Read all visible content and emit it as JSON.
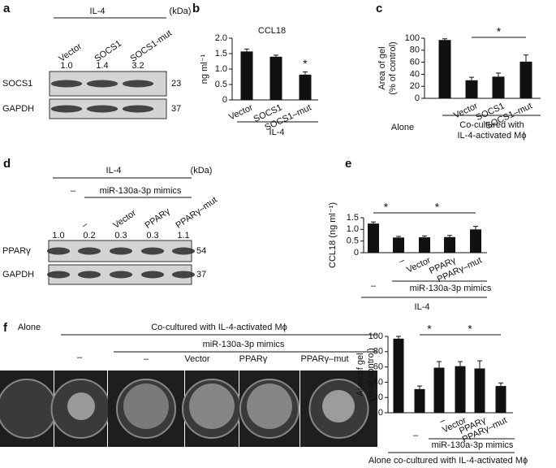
{
  "chart_data": [
    {
      "type": "bar",
      "panel": "b",
      "title": "CCL18",
      "ylabel": [
        "ng ml⁻¹"
      ],
      "categories": [
        "Vector",
        "SOCS1",
        "SOCS1–mut"
      ],
      "values": [
        1.57,
        1.4,
        0.82
      ],
      "errors": [
        0.08,
        0.05,
        0.09
      ],
      "color": "#111111",
      "ylim": [
        0,
        2
      ],
      "yticks": [
        0,
        0.5,
        {
          "value": 1,
          "label": "1.0"
        },
        1.5,
        {
          "value": 2,
          "label": "2.0"
        }
      ],
      "stars": [
        "*"
      ],
      "row_labels": [],
      "group_label": [
        "IL-4"
      ]
    },
    {
      "type": "bar",
      "panel": "c",
      "ylabel": [
        "Area of gel",
        "(% of control)"
      ],
      "categories": [
        null,
        "Vector",
        "SOCS1",
        "SOCS1–mut"
      ],
      "values": [
        97,
        30,
        36,
        61
      ],
      "errors": [
        2,
        5,
        6,
        11
      ],
      "color": "#111111",
      "ylim": [
        0,
        100
      ],
      "yticks": [
        0,
        20,
        40,
        60,
        80,
        100
      ],
      "stars": [
        "*"
      ],
      "row_labels": [
        "Alone"
      ],
      "group_label": [
        "Co-cultured with",
        "IL-4-activated Mϕ"
      ]
    },
    {
      "type": "bar",
      "panel": "e",
      "ylabel": [
        "CCL18 (ng ml⁻¹)"
      ],
      "categories": [
        null,
        "–",
        "Vector",
        "PPARγ",
        "PPARγ–mut"
      ],
      "values": [
        1.25,
        0.65,
        0.66,
        0.67,
        1.0
      ],
      "errors": [
        0.07,
        0.05,
        0.06,
        0.07,
        0.13
      ],
      "color": "#111111",
      "ylim": [
        0,
        1.5
      ],
      "yticks": [
        0,
        0.5,
        {
          "value": 1,
          "label": "1.0"
        },
        1.5
      ],
      "stars": [
        "*",
        "*"
      ],
      "row_labels": [
        "–",
        "miR-130a-3p mimics"
      ],
      "group_label": [
        "IL-4"
      ]
    },
    {
      "type": "bar",
      "ylabel": [
        "Area of gel",
        "(% of control)"
      ],
      "categories": [
        null,
        null,
        "–",
        "Vector",
        "PPARγ",
        "PPARγ–mut"
      ],
      "values": [
        97,
        31,
        59,
        61,
        58,
        35
      ],
      "errors": [
        3,
        4,
        8,
        6,
        10,
        4
      ],
      "color": "#111111",
      "ylim": [
        0,
        100
      ],
      "yticks": [
        0,
        20,
        40,
        60,
        80,
        100
      ],
      "stars": [
        "*",
        "*"
      ],
      "row_labels": [
        "–",
        "miR-130a-3p mimics"
      ],
      "group_label": [
        "Alone co-cultured with IL-4-activated Mϕ"
      ]
    }
  ],
  "blots": [
    {
      "panel": "a",
      "header": "IL-4",
      "kda_header": "(kDa)",
      "treatment_rows": [],
      "lanes": [
        "Vector",
        "SOCS1",
        "SOCS1-mut"
      ],
      "quantities": [
        "1.0",
        "1.4",
        "3.2"
      ],
      "rows": [
        {
          "name": "SOCS1",
          "kda": 23
        },
        {
          "name": "GAPDH",
          "kda": 37
        }
      ]
    },
    {
      "panel": "d",
      "header": "IL-4",
      "kda_header": "(kDa)",
      "treatment_rows": [
        "–",
        "miR-130a-3p mimics"
      ],
      "lanes": [
        null,
        "–",
        "Vector",
        "PPARγ",
        "PPARγ–mut"
      ],
      "quantities": [
        "1.0",
        "0.2",
        "0.3",
        "0.3",
        "1.1"
      ],
      "rows": [
        {
          "name": "PPARγ",
          "kda": 54
        },
        {
          "name": "GAPDH",
          "kda": 37
        }
      ]
    }
  ],
  "wells": {
    "panel": "f",
    "alone": "Alone",
    "header": "Co-cultured with IL-4-activated Mϕ",
    "treatment_rows": [
      "–",
      "miR-130a-3p mimics"
    ],
    "lanes": [
      "–",
      "Vector",
      "PPARγ",
      "PPARγ–mut"
    ]
  }
}
